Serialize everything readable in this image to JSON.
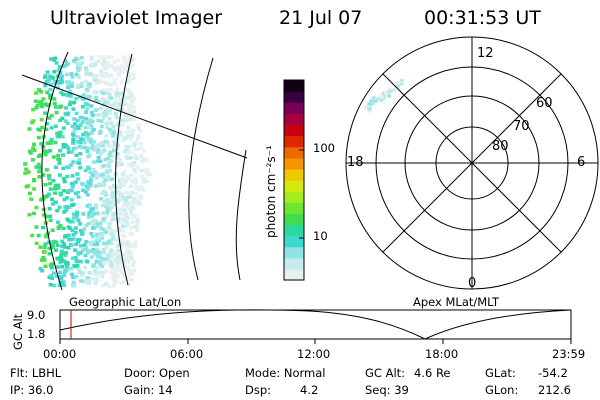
{
  "header": {
    "title": "Ultraviolet Imager",
    "date": "21 Jul 07",
    "time": "00:31:53 UT"
  },
  "colorbar": {
    "label": "photon cm⁻²s⁻¹",
    "ticks": [
      "100",
      "10"
    ],
    "colors": [
      "#e6f0f0",
      "#c8ecec",
      "#8ee4e4",
      "#3ed8d0",
      "#2cd89c",
      "#3ede50",
      "#6ee630",
      "#a6ea20",
      "#d4ea10",
      "#f0c800",
      "#f49400",
      "#f06800",
      "#e02800",
      "#c80010",
      "#a8003c",
      "#780058",
      "#380040",
      "#100010"
    ]
  },
  "geo_panel": {
    "caption": "Geographic Lat/Lon"
  },
  "apex_panel": {
    "caption": "Apex MLat/MLT",
    "mlt_labels": [
      "12",
      "18",
      "6",
      "0"
    ],
    "mlat_labels": [
      "60",
      "70",
      "80"
    ]
  },
  "alt_plot": {
    "axis_label": "GC Alt",
    "y_ticks": [
      "9.0",
      "1.8"
    ],
    "x_ticks": [
      "00:00",
      "06:00",
      "12:00",
      "18:00",
      "23:59"
    ]
  },
  "status": {
    "flt": "Flt: LBHL",
    "ip": "IP: 36.0",
    "door": "Door: Open",
    "gain": "Gain: 14",
    "mode": "Mode: Normal",
    "dsp_label": "Dsp:",
    "dsp_value": "4.2",
    "gc_alt_label": "GC Alt:",
    "gc_alt_value": "4.6 Re",
    "seq": "Seq: 39",
    "glat_label": "GLat:",
    "glat_value": "-54.2",
    "glon_label": "GLon:",
    "glon_value": "212.6"
  }
}
